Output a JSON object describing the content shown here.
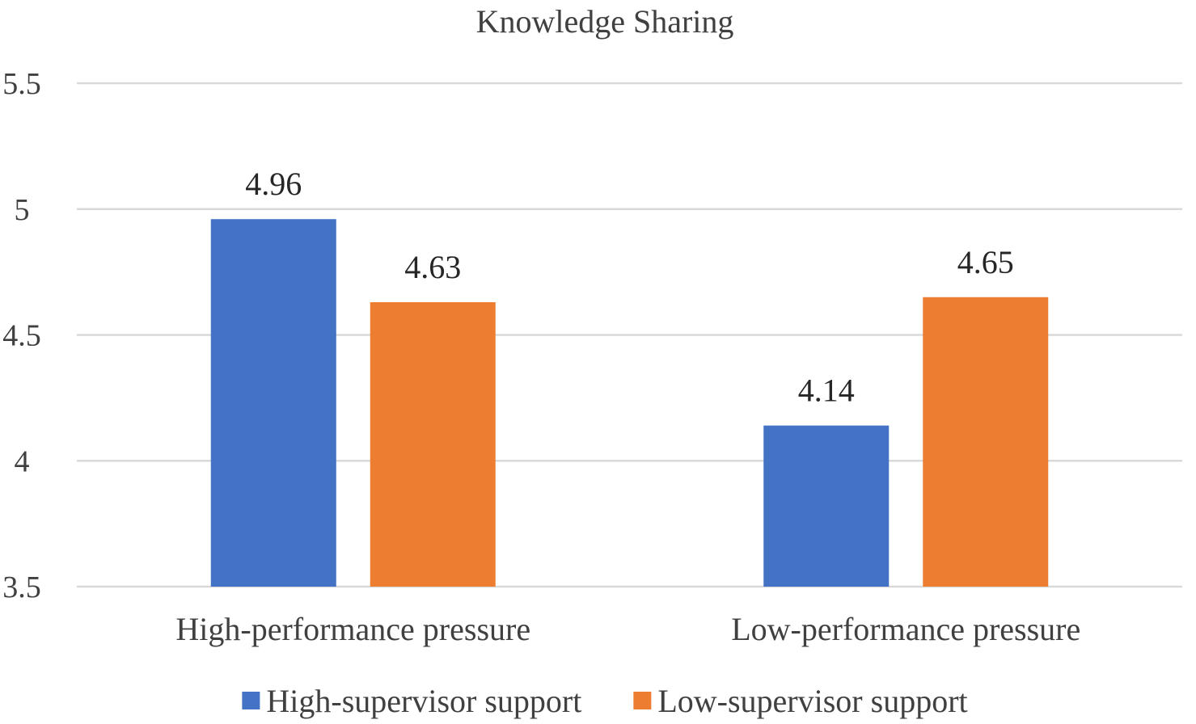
{
  "chart_data": {
    "type": "bar",
    "title": "Knowledge Sharing",
    "xlabel": "",
    "ylabel": "",
    "categories": [
      "High-performance pressure",
      "Low-performance pressure"
    ],
    "series": [
      {
        "name": "High-supervisor support",
        "values": [
          4.96,
          4.14
        ],
        "color": "#4472c4"
      },
      {
        "name": "Low-supervisor support",
        "values": [
          4.63,
          4.65
        ],
        "color": "#ed7d31"
      }
    ],
    "ylim": [
      3.5,
      5.5
    ],
    "yticks": [
      3.5,
      4,
      4.5,
      5,
      5.5
    ],
    "ytick_labels": [
      "3.5",
      "4",
      "4.5",
      "5",
      "5.5"
    ],
    "data_labels": [
      [
        "4.96",
        "4.14"
      ],
      [
        "4.63",
        "4.65"
      ]
    ],
    "grid": true,
    "legend_position": "bottom"
  }
}
